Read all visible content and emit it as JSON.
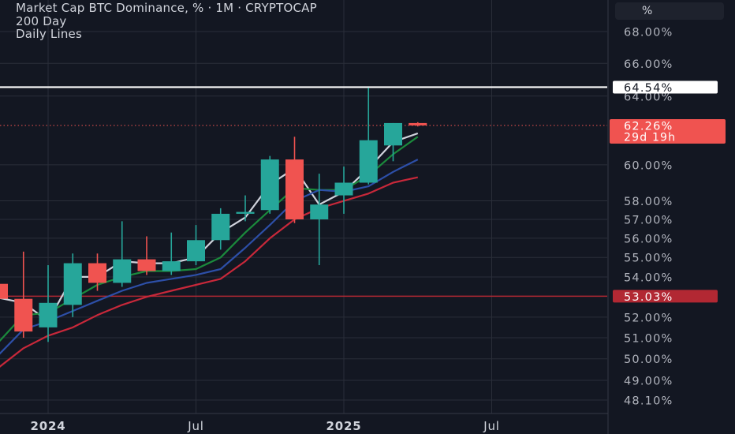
{
  "legend": {
    "title": "Market Cap BTC Dominance, % · 1M · CRYPTOCAP",
    "line2": "200 Day",
    "line3": "Daily Lines"
  },
  "unit_button": "%",
  "colors": {
    "background": "#131722",
    "grid": "#2a2e39",
    "up": "#26a69a",
    "down": "#f05350",
    "hline_top": "#ffffff",
    "hline_bottom": "#b22833",
    "current_price": "#f05350"
  },
  "chart_data": {
    "type": "candlestick",
    "title": "Market Cap BTC Dominance, % · 1M · CRYPTOCAP",
    "y_scale": "log",
    "ylim": [
      47.8,
      69.5
    ],
    "y_ticks": [
      "68.00%",
      "66.00%",
      "64.00%",
      "60.00%",
      "58.00%",
      "57.00%",
      "56.00%",
      "55.00%",
      "54.00%",
      "52.00%",
      "51.00%",
      "50.00%",
      "49.00%",
      "48.10%"
    ],
    "x_ticks": [
      "2024",
      "Jul",
      "2025",
      "Jul"
    ],
    "candles": [
      {
        "month": "2023-11",
        "open": 53.65,
        "high": 53.8,
        "low": 52.6,
        "close": 52.9
      },
      {
        "month": "2023-12",
        "open": 52.9,
        "high": 55.3,
        "low": 51.0,
        "close": 51.3
      },
      {
        "month": "2024-01",
        "open": 51.5,
        "high": 54.6,
        "low": 50.8,
        "close": 52.7
      },
      {
        "month": "2024-02",
        "open": 52.6,
        "high": 55.2,
        "low": 52.0,
        "close": 54.7
      },
      {
        "month": "2024-03",
        "open": 54.7,
        "high": 55.2,
        "low": 53.3,
        "close": 53.7
      },
      {
        "month": "2024-04",
        "open": 53.7,
        "high": 56.9,
        "low": 53.5,
        "close": 54.9
      },
      {
        "month": "2024-05",
        "open": 54.9,
        "high": 56.1,
        "low": 54.1,
        "close": 54.3
      },
      {
        "month": "2024-06",
        "open": 54.3,
        "high": 56.3,
        "low": 54.1,
        "close": 54.8
      },
      {
        "month": "2024-07",
        "open": 54.8,
        "high": 56.7,
        "low": 54.6,
        "close": 55.9
      },
      {
        "month": "2024-08",
        "open": 55.9,
        "high": 57.6,
        "low": 55.4,
        "close": 57.3
      },
      {
        "month": "2024-09",
        "open": 57.3,
        "high": 58.3,
        "low": 56.9,
        "close": 57.4
      },
      {
        "month": "2024-10",
        "open": 57.5,
        "high": 60.5,
        "low": 57.3,
        "close": 60.3
      },
      {
        "month": "2024-11",
        "open": 60.3,
        "high": 61.6,
        "low": 56.8,
        "close": 57.0
      },
      {
        "month": "2024-12",
        "open": 57.0,
        "high": 59.5,
        "low": 54.6,
        "close": 57.8
      },
      {
        "month": "2025-01",
        "open": 58.3,
        "high": 59.9,
        "low": 57.3,
        "close": 59.0
      },
      {
        "month": "2025-02",
        "open": 59.0,
        "high": 64.5,
        "low": 58.9,
        "close": 61.4
      },
      {
        "month": "2025-03",
        "open": 61.1,
        "high": 62.4,
        "low": 60.2,
        "close": 62.4
      },
      {
        "month": "2025-04",
        "open": 62.4,
        "high": 62.45,
        "low": 62.2,
        "close": 62.26
      }
    ],
    "lines": [
      {
        "color": "#d0d3dc",
        "values": [
          52.95,
          52.7,
          51.8,
          54.0,
          54.0,
          54.8,
          54.7,
          54.7,
          55.0,
          56.3,
          57.1,
          58.9,
          59.8,
          57.8,
          58.5,
          59.8,
          61.3,
          61.8
        ]
      },
      {
        "color": "#1b8a3c",
        "values": [
          50.8,
          52.1,
          52.2,
          52.9,
          53.6,
          54.0,
          54.3,
          54.3,
          54.4,
          55.0,
          56.3,
          57.5,
          58.7,
          58.6,
          58.6,
          59.4,
          60.6,
          61.6
        ]
      },
      {
        "color": "#2d4fa8",
        "values": [
          50.2,
          51.4,
          51.8,
          52.3,
          52.8,
          53.3,
          53.7,
          53.9,
          54.1,
          54.4,
          55.5,
          56.7,
          58.0,
          58.6,
          58.5,
          58.8,
          59.6,
          60.3
        ]
      },
      {
        "color": "#c8283a",
        "values": [
          49.6,
          50.5,
          51.1,
          51.5,
          52.1,
          52.6,
          53.0,
          53.3,
          53.6,
          53.9,
          54.8,
          56.0,
          57.0,
          57.6,
          58.0,
          58.4,
          59.0,
          59.3
        ]
      }
    ],
    "horizontal_lines": [
      {
        "value": 64.54,
        "label": "64.54%",
        "color": "#ffffff"
      },
      {
        "value": 53.03,
        "label": "53.03%",
        "color": "#b22833"
      }
    ],
    "current_price": {
      "value": 62.26,
      "label": "62.26%",
      "countdown": "29d 19h"
    }
  }
}
